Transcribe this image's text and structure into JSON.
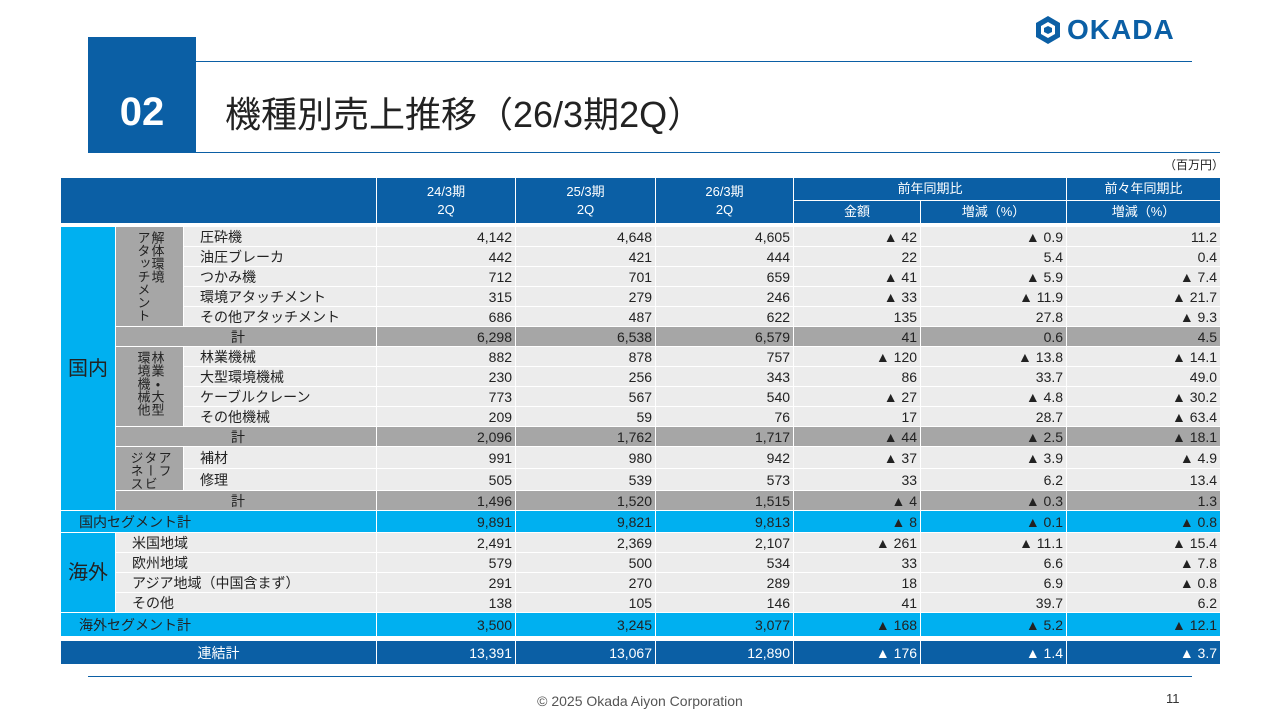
{
  "header": {
    "number": "02",
    "title": "機種別売上推移（26/3期2Q）",
    "logo": "OKADA"
  },
  "unit": "（百万円）",
  "table": {
    "head": {
      "periods": [
        {
          "year": "24/3期",
          "half": "2Q"
        },
        {
          "year": "25/3期",
          "half": "2Q"
        },
        {
          "year": "26/3期",
          "half": "2Q"
        }
      ],
      "yoy": "前年同期比",
      "yoy_cols": [
        "金額",
        "増減（%）"
      ],
      "yoy2": "前々年同期比",
      "yoy2_cols": [
        "増減（%）"
      ]
    },
    "domestic": {
      "label": "国内",
      "groups": [
        {
          "label": [
            "解体環境",
            "アタッチメント"
          ],
          "rows": [
            [
              "圧砕機",
              "4,142",
              "4,648",
              "4,605",
              "▲ 42",
              "▲ 0.9",
              "11.2"
            ],
            [
              "油圧ブレーカ",
              "442",
              "421",
              "444",
              "22",
              "5.4",
              "0.4"
            ],
            [
              "つかみ機",
              "712",
              "701",
              "659",
              "▲ 41",
              "▲ 5.9",
              "▲ 7.4"
            ],
            [
              "環境アタッチメント",
              "315",
              "279",
              "246",
              "▲ 33",
              "▲ 11.9",
              "▲ 21.7"
            ],
            [
              "その他アタッチメント",
              "686",
              "487",
              "622",
              "135",
              "27.8",
              "▲ 9.3"
            ]
          ],
          "subtotal": [
            "計",
            "6,298",
            "6,538",
            "6,579",
            "41",
            "0.6",
            "4.5"
          ]
        },
        {
          "label": [
            "林業・大型",
            "環境機械他"
          ],
          "rows": [
            [
              "林業機械",
              "882",
              "878",
              "757",
              "▲ 120",
              "▲ 13.8",
              "▲ 14.1"
            ],
            [
              "大型環境機械",
              "230",
              "256",
              "343",
              "86",
              "33.7",
              "49.0"
            ],
            [
              "ケーブルクレーン",
              "773",
              "567",
              "540",
              "▲ 27",
              "▲ 4.8",
              "▲ 30.2"
            ],
            [
              "その他機械",
              "209",
              "59",
              "76",
              "17",
              "28.7",
              "▲ 63.4"
            ]
          ],
          "subtotal": [
            "計",
            "2,096",
            "1,762",
            "1,717",
            "▲ 44",
            "▲ 2.5",
            "▲ 18.1"
          ]
        },
        {
          "label": [
            "アフ",
            "タービ",
            "ジネス"
          ],
          "rows": [
            [
              "補材",
              "991",
              "980",
              "942",
              "▲ 37",
              "▲ 3.9",
              "▲ 4.9"
            ],
            [
              "修理",
              "505",
              "539",
              "573",
              "33",
              "6.2",
              "13.4"
            ]
          ],
          "subtotal": [
            "計",
            "1,496",
            "1,520",
            "1,515",
            "▲ 4",
            "▲ 0.3",
            "1.3"
          ]
        }
      ],
      "total": [
        "国内セグメント計",
        "9,891",
        "9,821",
        "9,813",
        "▲ 8",
        "▲ 0.1",
        "▲ 0.8"
      ]
    },
    "overseas": {
      "label": "海外",
      "rows": [
        [
          "米国地域",
          "2,491",
          "2,369",
          "2,107",
          "▲ 261",
          "▲ 11.1",
          "▲ 15.4"
        ],
        [
          "欧州地域",
          "579",
          "500",
          "534",
          "33",
          "6.6",
          "▲ 7.8"
        ],
        [
          "アジア地域（中国含まず）",
          "291",
          "270",
          "289",
          "18",
          "6.9",
          "▲ 0.8"
        ],
        [
          "その他",
          "138",
          "105",
          "146",
          "41",
          "39.7",
          "6.2"
        ]
      ],
      "total": [
        "海外セグメント計",
        "3,500",
        "3,245",
        "3,077",
        "▲ 168",
        "▲ 5.2",
        "▲ 12.1"
      ]
    },
    "grand_total": [
      "連結計",
      "13,391",
      "13,067",
      "12,890",
      "▲ 176",
      "▲ 1.4",
      "▲ 3.7"
    ]
  },
  "footer": {
    "copyright": "© 2025 Okada Aiyon Corporation",
    "page": "11"
  }
}
